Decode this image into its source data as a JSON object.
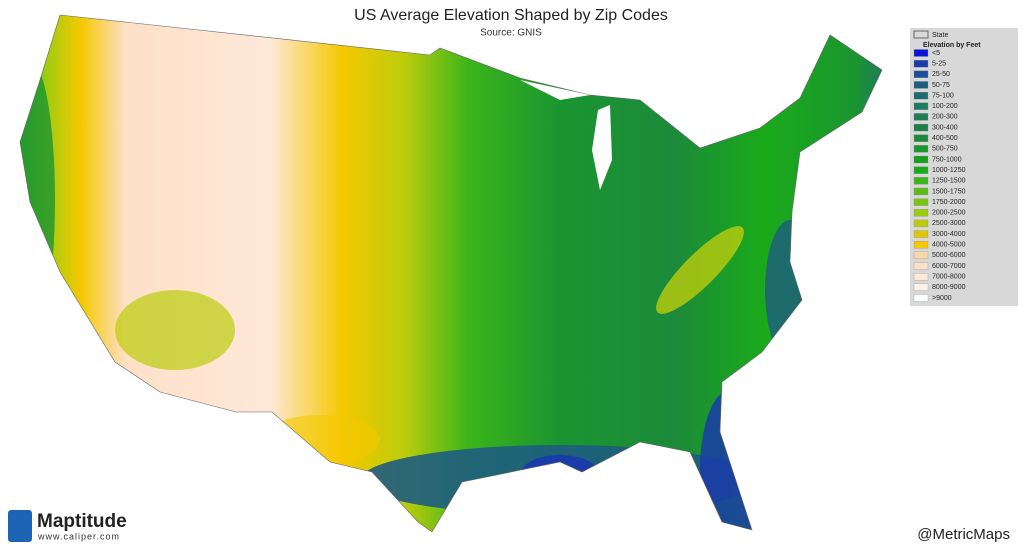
{
  "title": "US Average Elevation Shaped by Zip Codes",
  "subtitle": "Source:  GNIS",
  "legend": {
    "state_label": "State",
    "title": "Elevation by Feet",
    "items": [
      {
        "label": "<5",
        "color": "#0a14d8"
      },
      {
        "label": "5-25",
        "color": "#1a3ca8"
      },
      {
        "label": "25-50",
        "color": "#1e4f9a"
      },
      {
        "label": "50-75",
        "color": "#1e5c80"
      },
      {
        "label": "75-100",
        "color": "#1f6b72"
      },
      {
        "label": "100-200",
        "color": "#217a62"
      },
      {
        "label": "200-300",
        "color": "#1f7d55"
      },
      {
        "label": "300-400",
        "color": "#1e8048"
      },
      {
        "label": "400-500",
        "color": "#1c8a3a"
      },
      {
        "label": "500-750",
        "color": "#1a9530"
      },
      {
        "label": "750-1000",
        "color": "#16a020"
      },
      {
        "label": "1000-1250",
        "color": "#1aaa1a"
      },
      {
        "label": "1250-1500",
        "color": "#3cb51a"
      },
      {
        "label": "1500-1750",
        "color": "#5cbc18"
      },
      {
        "label": "1750-2000",
        "color": "#7cc414"
      },
      {
        "label": "2000-2500",
        "color": "#9ccc10"
      },
      {
        "label": "2500-3000",
        "color": "#bccc0c"
      },
      {
        "label": "3000-4000",
        "color": "#dcc808"
      },
      {
        "label": "4000-5000",
        "color": "#f5c800"
      },
      {
        "label": "5000-6000",
        "color": "#fcd8a8"
      },
      {
        "label": "6000-7000",
        "color": "#fde0c8"
      },
      {
        "label": "7000-8000",
        "color": "#fee8d8"
      },
      {
        "label": "8000-9000",
        "color": "#fff0e8"
      },
      {
        "label": ">9000",
        "color": "#ffffff"
      }
    ]
  },
  "logo": {
    "name": "Maptitude",
    "url": "www.caliper.com"
  },
  "credit": "@MetricMaps"
}
